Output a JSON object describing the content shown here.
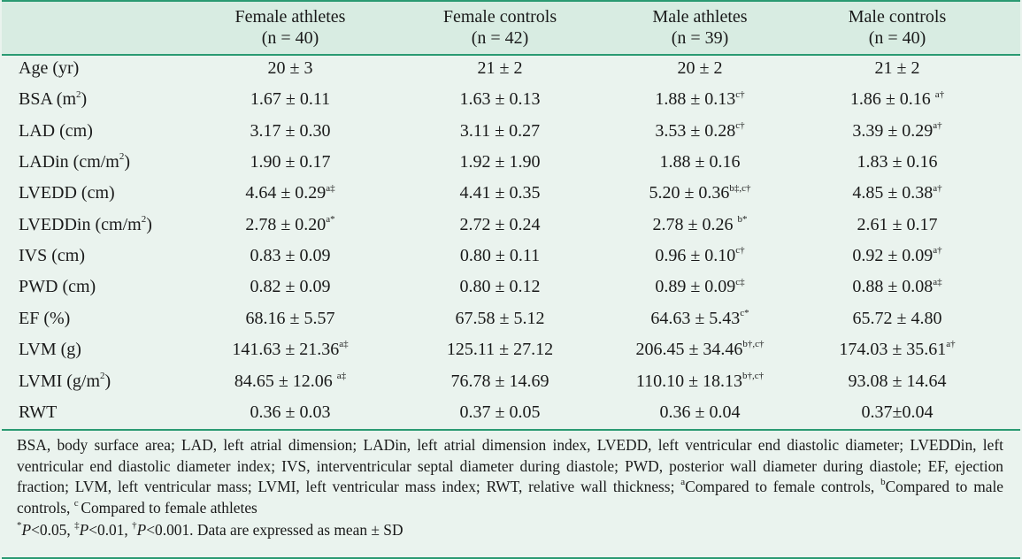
{
  "columns": [
    {
      "name": "Female athletes",
      "n": "(n = 40)"
    },
    {
      "name": "Female controls",
      "n": "(n = 42)"
    },
    {
      "name": "Male athletes",
      "n": "(n = 39)"
    },
    {
      "name": "Male controls",
      "n": "(n = 40)"
    }
  ],
  "rows": [
    {
      "label": "Age (yr)",
      "unit_sup": "",
      "label_tail": "",
      "cells": [
        {
          "val": "20 ± 3",
          "sup": ""
        },
        {
          "val": "21 ± 2",
          "sup": ""
        },
        {
          "val": "20 ± 2",
          "sup": ""
        },
        {
          "val": "21 ± 2",
          "sup": ""
        }
      ]
    },
    {
      "label": "BSA (m",
      "unit_sup": "2",
      "label_tail": ")",
      "cells": [
        {
          "val": "1.67 ± 0.11",
          "sup": ""
        },
        {
          "val": "1.63 ± 0.13",
          "sup": ""
        },
        {
          "val": "1.88 ± 0.13",
          "sup": "c†"
        },
        {
          "val": "1.86 ± 0.16 ",
          "sup": "a†"
        }
      ]
    },
    {
      "label": "LAD (cm)",
      "unit_sup": "",
      "label_tail": "",
      "cells": [
        {
          "val": "3.17 ± 0.30",
          "sup": ""
        },
        {
          "val": "3.11 ± 0.27",
          "sup": ""
        },
        {
          "val": "3.53 ± 0.28",
          "sup": "c†"
        },
        {
          "val": "3.39 ± 0.29",
          "sup": "a†"
        }
      ]
    },
    {
      "label": "LADin (cm/m",
      "unit_sup": "2",
      "label_tail": ")",
      "cells": [
        {
          "val": "1.90 ± 0.17",
          "sup": ""
        },
        {
          "val": "1.92 ± 1.90",
          "sup": ""
        },
        {
          "val": "1.88 ± 0.16",
          "sup": ""
        },
        {
          "val": "1.83 ± 0.16",
          "sup": ""
        }
      ]
    },
    {
      "label": "LVEDD (cm)",
      "unit_sup": "",
      "label_tail": "",
      "cells": [
        {
          "val": "4.64 ± 0.29",
          "sup": "a‡"
        },
        {
          "val": "4.41 ± 0.35",
          "sup": ""
        },
        {
          "val": "5.20 ± 0.36",
          "sup": "b‡,c†"
        },
        {
          "val": "4.85 ± 0.38",
          "sup": "a†"
        }
      ]
    },
    {
      "label": "LVEDDin (cm/m",
      "unit_sup": "2",
      "label_tail": ")",
      "cells": [
        {
          "val": "2.78 ± 0.20",
          "sup": "a*"
        },
        {
          "val": "2.72 ± 0.24",
          "sup": ""
        },
        {
          "val": "2.78 ± 0.26 ",
          "sup": "b*"
        },
        {
          "val": "2.61 ± 0.17",
          "sup": ""
        }
      ]
    },
    {
      "label": "IVS (cm)",
      "unit_sup": "",
      "label_tail": "",
      "cells": [
        {
          "val": "0.83 ± 0.09",
          "sup": ""
        },
        {
          "val": "0.80 ± 0.11",
          "sup": ""
        },
        {
          "val": "0.96 ± 0.10",
          "sup": "c†"
        },
        {
          "val": "0.92 ± 0.09",
          "sup": "a†"
        }
      ]
    },
    {
      "label": "PWD (cm)",
      "unit_sup": "",
      "label_tail": "",
      "cells": [
        {
          "val": "0.82 ± 0.09",
          "sup": ""
        },
        {
          "val": "0.80 ± 0.12",
          "sup": ""
        },
        {
          "val": "0.89 ± 0.09",
          "sup": "c‡"
        },
        {
          "val": "0.88 ± 0.08",
          "sup": "a‡"
        }
      ]
    },
    {
      "label": "EF (%)",
      "unit_sup": "",
      "label_tail": "",
      "cells": [
        {
          "val": "68.16 ± 5.57",
          "sup": ""
        },
        {
          "val": "67.58 ± 5.12",
          "sup": ""
        },
        {
          "val": "64.63 ± 5.43",
          "sup": "c*"
        },
        {
          "val": "65.72 ± 4.80",
          "sup": ""
        }
      ]
    },
    {
      "label": "LVM (g)",
      "unit_sup": "",
      "label_tail": "",
      "cells": [
        {
          "val": "141.63 ± 21.36",
          "sup": "a‡"
        },
        {
          "val": "125.11 ± 27.12",
          "sup": ""
        },
        {
          "val": "206.45 ± 34.46",
          "sup": "b†,c†"
        },
        {
          "val": "174.03 ± 35.61",
          "sup": "a†"
        }
      ]
    },
    {
      "label": "LVMI (g/m",
      "unit_sup": "2",
      "label_tail": ")",
      "cells": [
        {
          "val": "84.65 ± 12.06 ",
          "sup": "a‡"
        },
        {
          "val": "76.78 ± 14.69",
          "sup": ""
        },
        {
          "val": "110.10 ± 18.13",
          "sup": "b†,c†"
        },
        {
          "val": "93.08 ± 14.64",
          "sup": ""
        }
      ]
    },
    {
      "label": "RWT",
      "unit_sup": "",
      "label_tail": "",
      "cells": [
        {
          "val": "0.36 ± 0.03",
          "sup": ""
        },
        {
          "val": "0.37 ± 0.05",
          "sup": ""
        },
        {
          "val": "0.36 ± 0.04",
          "sup": ""
        },
        {
          "val": "0.37±0.04",
          "sup": ""
        }
      ]
    }
  ],
  "footnote": {
    "abbreviations": "BSA, body surface area; LAD, left atrial dimension; LADin, left atrial dimension index, LVEDD, left ventricular end diastolic diameter; LVEDDin, left ventricular end diastolic diameter index; IVS, interventricular septal diameter during diastole; PWD, posterior wall diameter during diastole; EF, ejection fraction; LVM, left ventricular mass; LVMI, left ventricular mass index; RWT, relative wall thickness; ",
    "note_a_sup": "a",
    "note_a": "Compared to female controls, ",
    "note_b_sup": "b",
    "note_b": "Compared to male controls, ",
    "note_c_sup": "c ",
    "note_c": "Compared to female athletes",
    "p1_sup": "*",
    "p1_var": "P",
    "p1": "<0.05, ",
    "p2_sup": "‡",
    "p2_var": "P",
    "p2": "<0.01, ",
    "p3_sup": "†",
    "p3_var": "P",
    "p3": "<0.001. Data are expressed as mean ± SD"
  },
  "colors": {
    "header_band": "#d8ece2",
    "body_band": "#eaf3ee",
    "rule": "#2a9a72"
  }
}
